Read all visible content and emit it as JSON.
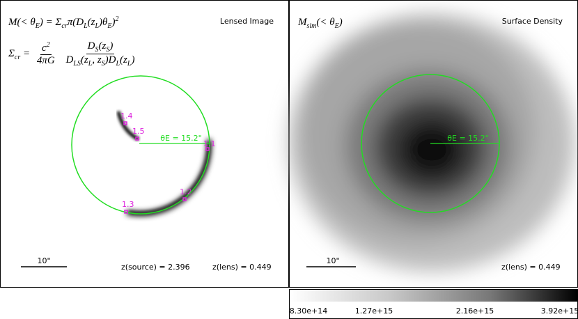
{
  "left_panel": {
    "title": "Lensed Image",
    "mass_formula": [
      "M(< θ",
      "E",
      ") = Σ",
      "cr",
      "π(D",
      "L",
      "(z",
      "L",
      ")θ",
      "E",
      ")",
      "2"
    ],
    "sigma_lhs": [
      "Σ",
      "cr",
      " ="
    ],
    "sigma_frac1_num": [
      "c",
      "2"
    ],
    "sigma_frac1_den": [
      "4πG"
    ],
    "sigma_frac2_num": [
      "D",
      "S",
      "(z",
      "S",
      ")"
    ],
    "sigma_frac2_den": [
      "D",
      "LS",
      "(z",
      "L",
      ", z",
      "S",
      ")D",
      "L",
      "(z",
      "L",
      ")"
    ],
    "einstein_label": "θE = 15.2\"",
    "image_labels": [
      "1.1",
      "1.2",
      "1.3",
      "1.4",
      "1.5"
    ],
    "scale_label": "10\"",
    "source_redshift": "z(source) = 2.396",
    "lens_redshift": "z(lens) = 0.449"
  },
  "right_panel": {
    "title": "Surface Density",
    "mass_label": [
      "M",
      "sim",
      "(< θ",
      "E",
      ")"
    ],
    "einstein_label": "θE = 15.2\"",
    "scale_label": "10\"",
    "lens_redshift": "z(lens) = 0.449"
  },
  "colorbar": {
    "labels": [
      "8.30e+14",
      "1.27e+15",
      "2.16e+15",
      "3.92e+15"
    ]
  }
}
